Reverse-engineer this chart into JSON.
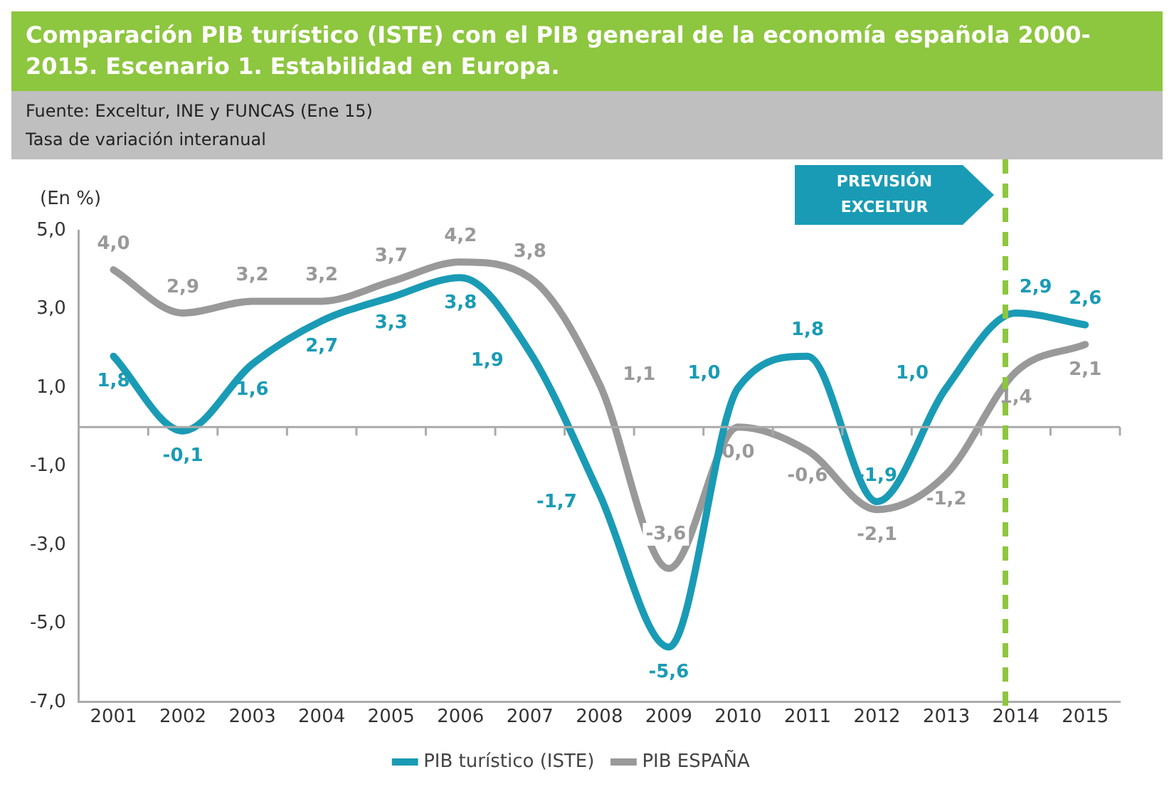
{
  "chart_data": {
    "type": "line",
    "title": "Comparación PIB turístico (ISTE) con el PIB general de la economía española 2000-2015. Escenario 1. Estabilidad en Europa.",
    "subtitle": "Tasa de variación interanual",
    "ylabel": "(En %)",
    "annotations": [
      "Fuente:  Exceltur, INE y FUNCAS (Ene 15)",
      "PREVISIÓN EXCELTUR"
    ],
    "x": [
      2001,
      2002,
      2003,
      2004,
      2005,
      2006,
      2007,
      2008,
      2009,
      2010,
      2011,
      2012,
      2013,
      2014,
      2015
    ],
    "xlim": [
      2000.5,
      2015.5
    ],
    "xticks": [
      2001,
      2002,
      2003,
      2004,
      2005,
      2006,
      2007,
      2008,
      2009,
      2010,
      2011,
      2012,
      2013,
      2014,
      2015
    ],
    "ylim": [
      -7,
      5
    ],
    "yticks": [
      {
        "value": -7,
        "label": "-7,0"
      },
      {
        "value": -5,
        "label": "-5,0"
      },
      {
        "value": -3,
        "label": "-3,0"
      },
      {
        "value": -1,
        "label": "-1,0"
      },
      {
        "value": 1,
        "label": "1,0"
      },
      {
        "value": 3,
        "label": "3,0"
      },
      {
        "value": 5,
        "label": "5,0"
      }
    ],
    "series": [
      {
        "name": "PIB turístico (ISTE)",
        "color": "#1a9bb5",
        "values": [
          1.8,
          -0.1,
          1.6,
          2.7,
          3.3,
          3.8,
          1.9,
          -1.7,
          -5.6,
          1.0,
          1.8,
          -1.9,
          1.0,
          2.9,
          2.6
        ],
        "value_labels": [
          "1,8",
          "-0,1",
          "1,6",
          "2,7",
          "3,3",
          "3,8",
          "1,9",
          "-1,7",
          "-5,6",
          "1,0",
          "1,8",
          "-1,9",
          "1,0",
          "2,9",
          "2,6"
        ]
      },
      {
        "name": "PIB ESPAÑA",
        "color": "#999999",
        "values": [
          4.0,
          2.9,
          3.2,
          3.2,
          3.7,
          4.2,
          3.8,
          1.1,
          -3.6,
          0.0,
          -0.6,
          -2.1,
          -1.2,
          1.4,
          2.1
        ],
        "value_labels": [
          "4,0",
          "2,9",
          "3,2",
          "3,2",
          "3,7",
          "4,2",
          "3,8",
          "1,1",
          "-3,6",
          "0,0",
          "-0,6",
          "-2,1",
          "-1,2",
          "1,4",
          "2,1"
        ]
      }
    ],
    "ref_lines": [
      {
        "axis": "x",
        "value": 2013.85,
        "color": "#8dc63f",
        "line_style": "dashed"
      }
    ],
    "legend": "bottom",
    "marker": "none",
    "line_style": "solid",
    "grid": false
  }
}
